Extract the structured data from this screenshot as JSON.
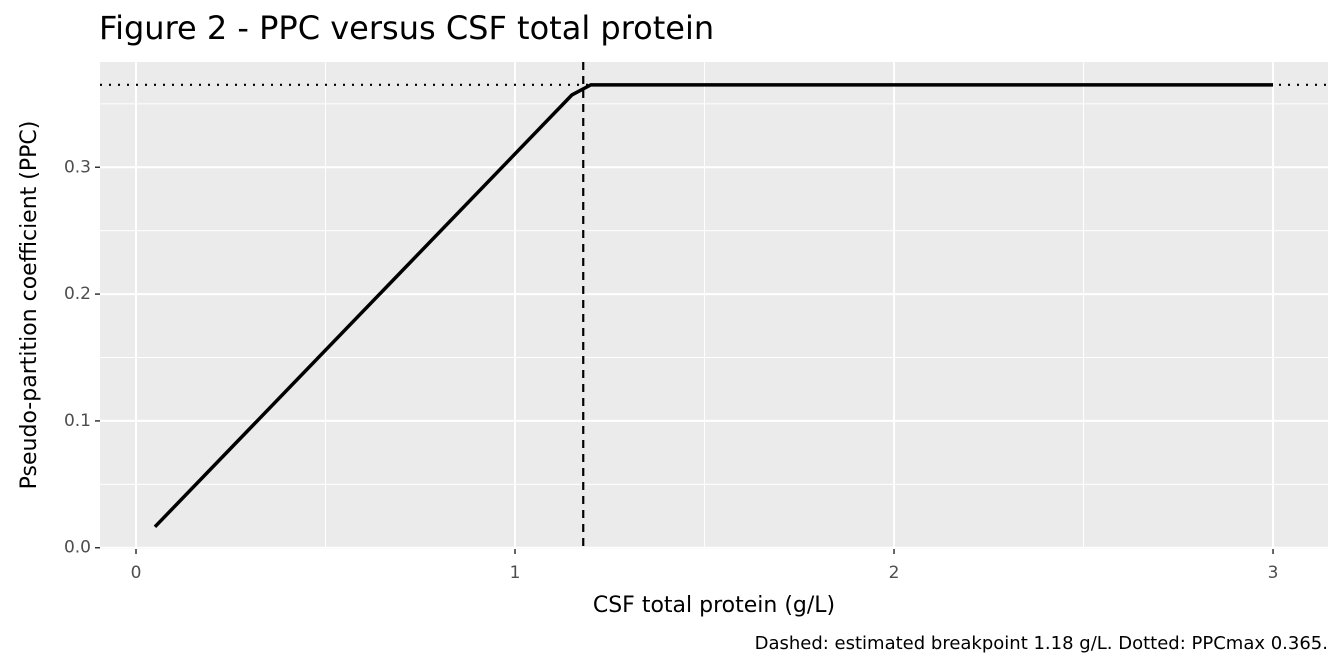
{
  "chart_data": {
    "type": "line",
    "title": "Figure 2 - PPC versus CSF total protein",
    "x_label": "CSF total protein (g/L)",
    "y_label": "Pseudo-partition coefficient (PPC)",
    "caption": "Dashed: estimated breakpoint 1.18 g/L. Dotted: PPCmax 0.365.",
    "x": [
      0.05,
      1.15,
      1.2,
      3
    ],
    "series": [
      {
        "name": "PPC",
        "color": "#000000",
        "values": [
          0.0165,
          0.357,
          0.365,
          0.365
        ]
      }
    ],
    "vline": 1.18,
    "hline": 0.365,
    "xlim": [
      -0.095,
      3.145
    ],
    "ylim": [
      -0.001,
      0.383
    ],
    "xticks": [
      0,
      1,
      2,
      3
    ],
    "yticks": [
      {
        "value": 0,
        "label": "0.0"
      },
      0.1,
      0.2,
      0.3
    ],
    "minor_xticks": [
      0.5,
      1.5,
      2.5
    ],
    "minor_yticks": [
      0.05,
      0.15,
      0.25,
      0.35
    ],
    "grid": true
  }
}
